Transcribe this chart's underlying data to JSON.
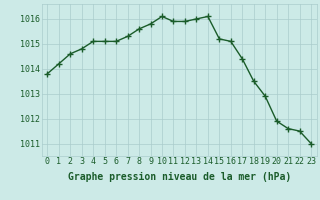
{
  "x": [
    0,
    1,
    2,
    3,
    4,
    5,
    6,
    7,
    8,
    9,
    10,
    11,
    12,
    13,
    14,
    15,
    16,
    17,
    18,
    19,
    20,
    21,
    22,
    23
  ],
  "y": [
    1013.8,
    1014.2,
    1014.6,
    1014.8,
    1015.1,
    1015.1,
    1015.1,
    1015.3,
    1015.6,
    1015.8,
    1016.1,
    1015.9,
    1015.9,
    1016.0,
    1016.1,
    1015.2,
    1015.1,
    1014.4,
    1013.5,
    1012.9,
    1011.9,
    1011.6,
    1011.5,
    1011.0
  ],
  "line_color": "#1a5c2a",
  "marker": "+",
  "marker_size": 4,
  "marker_linewidth": 1.0,
  "bg_color": "#cceae7",
  "grid_color": "#aacccc",
  "ylabel_ticks": [
    1011,
    1012,
    1013,
    1014,
    1015,
    1016
  ],
  "xlabel_ticks": [
    0,
    1,
    2,
    3,
    4,
    5,
    6,
    7,
    8,
    9,
    10,
    11,
    12,
    13,
    14,
    15,
    16,
    17,
    18,
    19,
    20,
    21,
    22,
    23
  ],
  "xlabel_label": "Graphe pression niveau de la mer (hPa)",
  "ylim": [
    1010.5,
    1016.6
  ],
  "xlim": [
    -0.5,
    23.5
  ],
  "tick_fontsize": 6,
  "xlabel_fontsize": 7,
  "linewidth": 1.0
}
